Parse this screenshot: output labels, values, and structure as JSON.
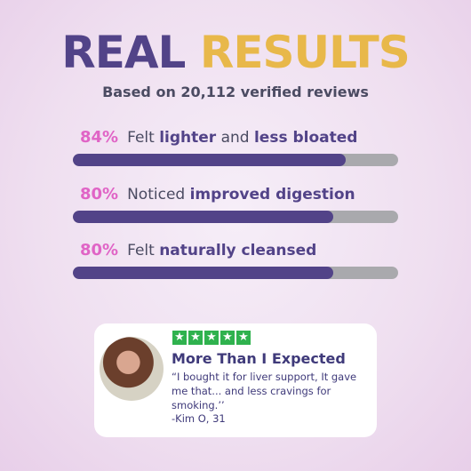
{
  "header": {
    "title_part1": "REAL",
    "title_part2": "RESULTS",
    "subtitle": "Based on 20,112 verified reviews"
  },
  "stats": [
    {
      "value": 84,
      "label": "84%",
      "parts": [
        {
          "text": "Felt ",
          "bold": false
        },
        {
          "text": "lighter",
          "bold": true
        },
        {
          "text": " and ",
          "bold": false
        },
        {
          "text": "less bloated",
          "bold": true
        }
      ]
    },
    {
      "value": 80,
      "label": "80%",
      "parts": [
        {
          "text": "Noticed ",
          "bold": false
        },
        {
          "text": "improved digestion",
          "bold": true
        }
      ]
    },
    {
      "value": 80,
      "label": "80%",
      "parts": [
        {
          "text": "Felt ",
          "bold": false
        },
        {
          "text": "naturally cleansed",
          "bold": true
        }
      ]
    }
  ],
  "review": {
    "title": "More Than I Expected",
    "quote": "“I bought it for liver support, It gave me that... and less cravings for smoking.’’",
    "author": "-Kim O, 31"
  }
}
